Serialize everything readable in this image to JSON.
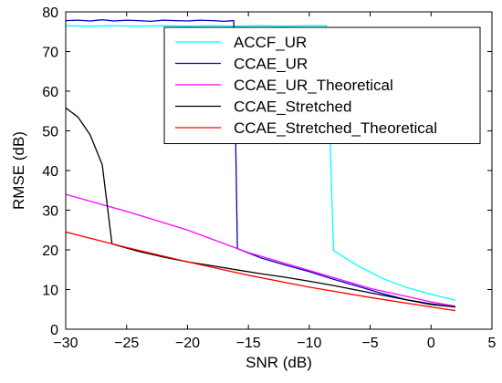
{
  "chart_data": {
    "type": "line",
    "title": "",
    "xlabel": "SNR (dB)",
    "ylabel": "RMSE (dB)",
    "xlim": [
      -30,
      5
    ],
    "ylim": [
      0,
      80
    ],
    "xticks": [
      -30,
      -25,
      -20,
      -15,
      -10,
      -5,
      0,
      5
    ],
    "yticks": [
      0,
      10,
      20,
      30,
      40,
      50,
      60,
      70,
      80
    ],
    "xtick_labels": [
      "−30",
      "−25",
      "−20",
      "−15",
      "−10",
      "−5",
      "0",
      "5"
    ],
    "ytick_labels": [
      "0",
      "10",
      "20",
      "30",
      "40",
      "50",
      "60",
      "70",
      "80"
    ],
    "grid": false,
    "legend_position": "top-right",
    "series": [
      {
        "name": "ACCF_UR",
        "color": "#00ffff",
        "x": [
          -30,
          -28,
          -26,
          -24,
          -22,
          -20,
          -18,
          -16,
          -14,
          -12,
          -10,
          -8.6,
          -8,
          -6,
          -4,
          -2,
          0,
          2
        ],
        "y": [
          76.5,
          76.4,
          76.5,
          76.4,
          76.5,
          76.4,
          76.5,
          76.4,
          76.5,
          76.4,
          76.5,
          76.5,
          19.8,
          16.0,
          12.8,
          10.5,
          8.8,
          7.3
        ]
      },
      {
        "name": "CCAE_UR",
        "color": "#0000cc",
        "x": [
          -30,
          -29,
          -28,
          -27,
          -26,
          -25,
          -24,
          -23,
          -22,
          -21,
          -20,
          -19,
          -18,
          -17,
          -16.2,
          -15.9,
          -14,
          -12,
          -10,
          -8,
          -6,
          -4,
          -2,
          0,
          2
        ],
        "y": [
          77.8,
          77.9,
          77.7,
          78.0,
          77.7,
          77.9,
          77.8,
          77.6,
          77.9,
          77.8,
          77.7,
          77.9,
          77.8,
          77.6,
          77.8,
          20.3,
          18.0,
          16.2,
          14.5,
          12.6,
          10.8,
          9.0,
          7.4,
          6.4,
          5.6
        ]
      },
      {
        "name": "CCAE_UR_Theoretical",
        "color": "#ff00ff",
        "x": [
          -30,
          -25,
          -20,
          -15,
          -10,
          -5,
          0,
          2
        ],
        "y": [
          34.0,
          29.7,
          25.0,
          19.3,
          14.8,
          10.3,
          6.9,
          5.8
        ]
      },
      {
        "name": "CCAE_Stretched",
        "color": "#000000",
        "x": [
          -30,
          -29,
          -28,
          -27,
          -26.2,
          -26,
          -24,
          -22,
          -20,
          -18,
          -16,
          -14,
          -12,
          -10,
          -8,
          -6,
          -4,
          -2,
          0,
          2
        ],
        "y": [
          55.8,
          53.5,
          49.0,
          41.5,
          21.5,
          21.3,
          19.6,
          18.2,
          17.0,
          16.0,
          15.0,
          14.0,
          13.1,
          12.1,
          11.0,
          9.8,
          8.6,
          7.4,
          6.2,
          5.6
        ]
      },
      {
        "name": "CCAE_Stretched_Theoretical",
        "color": "#ff0000",
        "x": [
          -30,
          -25,
          -20,
          -15,
          -10,
          -5,
          0,
          2
        ],
        "y": [
          24.5,
          20.6,
          17.0,
          13.6,
          10.6,
          8.0,
          5.6,
          4.7
        ]
      }
    ]
  }
}
